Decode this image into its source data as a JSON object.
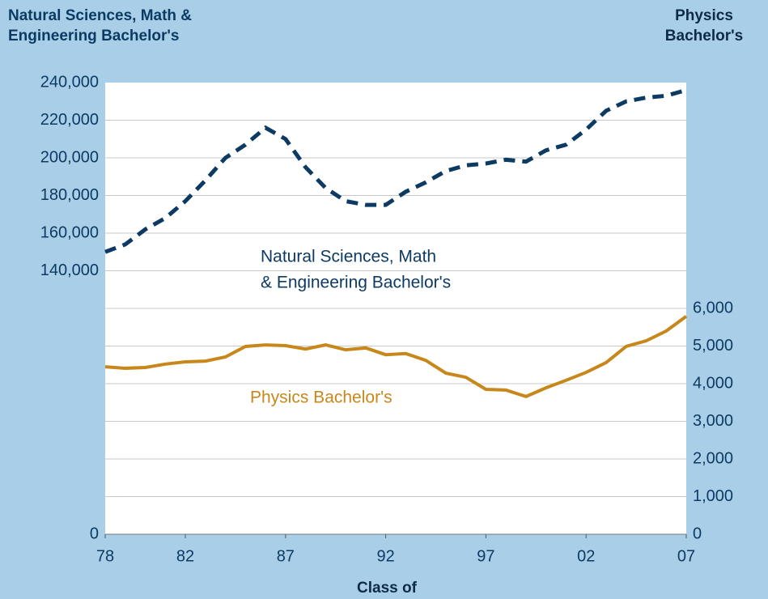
{
  "chart_data": {
    "type": "line",
    "y_title": [
      "Natural Sciences, Math &",
      "Engineering Bachelor's"
    ],
    "y2_title": [
      "Physics",
      "Bachelor's"
    ],
    "x_title": "Class of",
    "x": [
      1978,
      1979,
      1980,
      1981,
      1982,
      1983,
      1984,
      1985,
      1986,
      1987,
      1988,
      1989,
      1990,
      1991,
      1992,
      1993,
      1994,
      1995,
      1996,
      1997,
      1998,
      1999,
      2000,
      2001,
      2002,
      2003,
      2004,
      2005,
      2006,
      2007
    ],
    "xlim": [
      1978,
      2007
    ],
    "xticks": [
      {
        "value": 1978,
        "label": "78"
      },
      {
        "value": 1982,
        "label": "82"
      },
      {
        "value": 1987,
        "label": "87"
      },
      {
        "value": 1992,
        "label": "92"
      },
      {
        "value": 1997,
        "label": "97"
      },
      {
        "value": 2002,
        "label": "02"
      },
      {
        "value": 2007,
        "label": "07"
      }
    ],
    "ylim": [
      0,
      240000
    ],
    "yticks": [
      0,
      {
        "value": 140000,
        "label": "140,000"
      },
      {
        "value": 160000,
        "label": "160,000"
      },
      {
        "value": 180000,
        "label": "180,000"
      },
      {
        "value": 200000,
        "label": "200,000"
      },
      {
        "value": 220000,
        "label": "220,000"
      },
      {
        "value": 240000,
        "label": "240,000"
      }
    ],
    "y2lim": [
      0,
      12000
    ],
    "y2ticks": [
      0,
      {
        "value": 1000,
        "label": "1,000"
      },
      {
        "value": 2000,
        "label": "2,000"
      },
      {
        "value": 3000,
        "label": "3,000"
      },
      {
        "value": 4000,
        "label": "4,000"
      },
      {
        "value": 5000,
        "label": "5,000"
      },
      {
        "value": 6000,
        "label": "6,000"
      }
    ],
    "grid": true,
    "series": [
      {
        "name": [
          "Natural Sciences, Math",
          "& Engineering Bachelor's"
        ],
        "color": "#0d3a63",
        "dashed": true,
        "values": [
          150000,
          154000,
          162000,
          168000,
          177000,
          188000,
          200000,
          207000,
          216000,
          210000,
          195000,
          184000,
          177000,
          175000,
          175000,
          182000,
          187000,
          193000,
          196000,
          197000,
          199000,
          198000,
          204000,
          207000,
          215000,
          225000,
          230000,
          232000,
          233000,
          236000
        ]
      },
      {
        "name": [
          "Physics Bachelor's"
        ],
        "color": "#c8871a",
        "axis": "y2",
        "dashed": false,
        "values": [
          4450,
          4410,
          4430,
          4520,
          4580,
          4600,
          4710,
          4990,
          5030,
          5010,
          4920,
          5030,
          4900,
          4950,
          4770,
          4800,
          4620,
          4280,
          4170,
          3850,
          3830,
          3660,
          3890,
          4090,
          4300,
          4560,
          4990,
          5140,
          5400,
          5790
        ]
      }
    ]
  }
}
